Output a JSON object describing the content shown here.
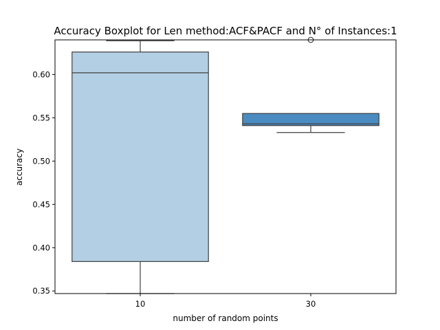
{
  "chart_data": {
    "type": "boxplot",
    "title": "Accuracy Boxplot for Len method:ACF&PACF and N° of Instances:1",
    "xlabel": "number of random points",
    "ylabel": "accuracy",
    "categories": [
      "10",
      "30"
    ],
    "ylim": [
      0.347,
      0.64
    ],
    "yticks": [
      0.35,
      0.4,
      0.45,
      0.5,
      0.55,
      0.6
    ],
    "ytick_labels": [
      "0.35",
      "0.40",
      "0.45",
      "0.50",
      "0.55",
      "0.60"
    ],
    "grid": false,
    "boxes": [
      {
        "category": "10",
        "whisker_low": 0.347,
        "q1": 0.384,
        "median": 0.602,
        "q3": 0.626,
        "whisker_high": 0.639,
        "outliers": [],
        "color": "#b3cfe3"
      },
      {
        "category": "30",
        "whisker_low": 0.533,
        "q1": 0.541,
        "median": 0.543,
        "q3": 0.555,
        "whisker_high": 0.555,
        "outliers": [
          0.64
        ],
        "color": "#4a8cc2"
      }
    ],
    "line_color": "#3f3f3f"
  }
}
